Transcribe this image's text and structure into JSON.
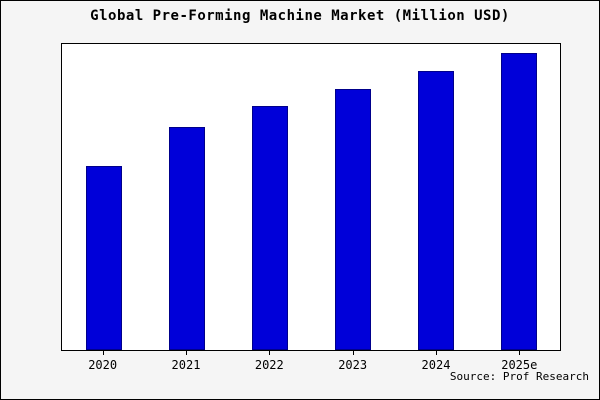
{
  "chart_data": {
    "type": "bar",
    "title": "Global Pre-Forming Machine Market (Million USD)",
    "categories": [
      "2020",
      "2021",
      "2022",
      "2023",
      "2024",
      "2025e"
    ],
    "values": [
      62,
      75,
      82,
      88,
      94,
      100
    ],
    "xlabel": "",
    "ylabel": "",
    "ylim": [
      0,
      103
    ],
    "grid": false,
    "legend_position": "none"
  },
  "source": "Source: Prof Research",
  "colors": {
    "bar_fill": "#0000D9",
    "bar_edge": "#00008B",
    "figure_bg": "#f5f5f5",
    "plot_bg": "#ffffff",
    "text": "#000000"
  }
}
